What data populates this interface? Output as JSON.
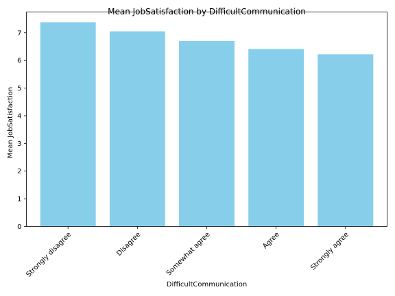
{
  "chart_data": {
    "type": "bar",
    "title": "Mean JobSatisfaction by DifficultCommunication",
    "xlabel": "DifficultCommunication",
    "ylabel": "Mean JobSatisfaction",
    "categories": [
      "Strongly disagree",
      "Disagree",
      "Somewhat agree",
      "Agree",
      "Strongly agree"
    ],
    "values": [
      7.38,
      7.05,
      6.7,
      6.41,
      6.22
    ],
    "ylim": [
      0,
      7.75
    ],
    "yticks": [
      "0",
      "1",
      "2",
      "3",
      "4",
      "5",
      "6",
      "7"
    ],
    "grid": false,
    "bar_color": "#87ceeb"
  }
}
